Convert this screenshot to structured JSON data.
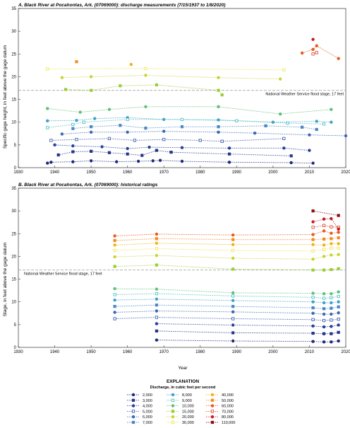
{
  "chart_data": [
    {
      "type": "scatter",
      "title": "A. Black River at Pocahontas, Ark. (07069000): discharge measurements (7/15/1937 to 1/8/2020)",
      "xlabel": "",
      "ylabel": "Specific gage height, in feet above the gage datum",
      "xlim": [
        1930,
        2020
      ],
      "ylim": [
        0,
        35
      ],
      "x_ticks": [
        "1930",
        "1940",
        "1950",
        "1960",
        "1970",
        "1980",
        "1990",
        "2000",
        "2010",
        "2020"
      ],
      "y_ticks": [
        "0",
        "5",
        "10",
        "15",
        "20",
        "25",
        "30",
        "35"
      ],
      "reference_line": {
        "y": 17,
        "label": "National Weather Service flood stage, 17 feet"
      },
      "series": [
        {
          "discharge": "2,000",
          "color": "#1f2a7a",
          "points": [
            [
              1938,
              1.0
            ],
            [
              1939,
              1.2
            ],
            [
              1945,
              1.3
            ],
            [
              1950,
              1.5
            ],
            [
              1957,
              1.3
            ],
            [
              1963,
              1.4
            ],
            [
              1967,
              1.5
            ],
            [
              1969,
              1.6
            ],
            [
              1975,
              1.4
            ],
            [
              1988,
              1.2
            ],
            [
              2005,
              1.1
            ],
            [
              2011,
              1.0
            ]
          ]
        },
        {
          "discharge": "3,000",
          "color": "#24358a",
          "points": [
            [
              1941,
              2.8
            ],
            [
              1945,
              3.5
            ],
            [
              1950,
              3.6
            ],
            [
              1955,
              3.3
            ],
            [
              1960,
              3.0
            ],
            [
              1964,
              2.7
            ],
            [
              1968,
              3.8
            ],
            [
              1972,
              3.4
            ],
            [
              1988,
              3.0
            ],
            [
              2005,
              2.6
            ]
          ]
        },
        {
          "discharge": "4,000",
          "color": "#27409a",
          "points": [
            [
              1940,
              5.0
            ],
            [
              1945,
              4.8
            ],
            [
              1953,
              4.6
            ],
            [
              1960,
              4.2
            ],
            [
              1966,
              4.5
            ],
            [
              1975,
              4.4
            ],
            [
              1988,
              4.3
            ],
            [
              2003,
              4.3
            ],
            [
              2010,
              3.8
            ]
          ]
        },
        {
          "discharge": "5,000",
          "color": "#2f52a8",
          "points": [
            [
              1939,
              6.0
            ],
            [
              1946,
              6.2
            ],
            [
              1955,
              6.4
            ],
            [
              1962,
              6.0
            ],
            [
              1970,
              6.2
            ],
            [
              1980,
              6.0
            ],
            [
              1986,
              5.8
            ],
            [
              2003,
              6.4
            ]
          ]
        },
        {
          "discharge": "6,000",
          "color": "#3a67b6",
          "points": [
            [
              1942,
              7.4
            ],
            [
              1950,
              7.8
            ],
            [
              1960,
              7.8
            ],
            [
              1970,
              8.0
            ],
            [
              1985,
              7.8
            ],
            [
              1995,
              7.6
            ],
            [
              2010,
              7.2
            ],
            [
              2020,
              7.0
            ]
          ]
        },
        {
          "discharge": "7,000",
          "color": "#4a86c4",
          "points": [
            [
              1945,
              8.6
            ],
            [
              1950,
              9.0
            ],
            [
              1958,
              9.3
            ],
            [
              1965,
              8.7
            ],
            [
              1975,
              9.0
            ],
            [
              1985,
              9.0
            ],
            [
              1998,
              9.2
            ],
            [
              2008,
              8.9
            ],
            [
              2012,
              8.4
            ]
          ]
        },
        {
          "discharge": "8,000",
          "color": "#3fa0cc",
          "points": [
            [
              1938,
              10.3
            ],
            [
              1946,
              10.4
            ],
            [
              1951,
              10.8
            ],
            [
              1960,
              11.0
            ],
            [
              1970,
              10.6
            ],
            [
              1985,
              10.5
            ],
            [
              2000,
              10.0
            ],
            [
              2012,
              10.2
            ],
            [
              2016,
              10.0
            ]
          ]
        },
        {
          "discharge": "9,000",
          "color": "#45bcbe",
          "points": [
            [
              1938,
              8.8
            ],
            [
              1945,
              9.5
            ],
            [
              1948,
              10.0
            ],
            [
              1960,
              10.6
            ],
            [
              1975,
              10.6
            ],
            [
              1990,
              10.3
            ],
            [
              2004,
              9.8
            ],
            [
              2014,
              9.6
            ]
          ]
        },
        {
          "discharge": "10,000",
          "color": "#5fc07a",
          "points": [
            [
              1938,
              13.0
            ],
            [
              1947,
              12.2
            ],
            [
              1955,
              12.8
            ],
            [
              1965,
              13.4
            ],
            [
              1985,
              13.4
            ],
            [
              2002,
              11.8
            ],
            [
              2016,
              12.8
            ]
          ]
        },
        {
          "discharge": "15,000",
          "color": "#9acd32",
          "points": [
            [
              1943,
              17.2
            ],
            [
              1950,
              17.0
            ],
            [
              1958,
              18.0
            ],
            [
              1968,
              18.2
            ],
            [
              1985,
              17.0
            ],
            [
              1986,
              16.0
            ]
          ]
        },
        {
          "discharge": "20,000",
          "color": "#c7d431",
          "points": [
            [
              1942,
              19.8
            ],
            [
              1950,
              20.0
            ],
            [
              1965,
              20.3
            ],
            [
              1985,
              19.8
            ],
            [
              2002,
              19.5
            ]
          ]
        },
        {
          "discharge": "30,000",
          "color": "#eee444",
          "points": [
            [
              1938,
              21.7
            ],
            [
              1965,
              21.8
            ],
            [
              2003,
              21.5
            ]
          ]
        },
        {
          "discharge": "40,000",
          "color": "#f2b21d",
          "points": [
            [
              1961,
              22.7
            ]
          ]
        },
        {
          "discharge": "50,000",
          "color": "#f28c1e",
          "points": [
            [
              1946,
              23.3
            ]
          ]
        },
        {
          "discharge": "60,000",
          "color": "#e8591e",
          "points": [
            [
              2008,
              25.2
            ],
            [
              2011,
              26.0
            ],
            [
              2012,
              26.8
            ],
            [
              2018,
              24.0
            ]
          ]
        },
        {
          "discharge": "70,000",
          "color": "#dc3b26",
          "points": [
            [
              2011,
              25.0
            ],
            [
              2012,
              25.3
            ]
          ]
        },
        {
          "discharge": "80,000",
          "color": "#c9191f",
          "points": [
            [
              2011,
              28.2
            ]
          ]
        }
      ]
    },
    {
      "type": "line",
      "title": "B. Black River at Pocahontas, Ark. (07069000): historical ratings",
      "xlabel": "Year",
      "ylabel": "Stage, in feet above the gage datum",
      "xlim": [
        1930,
        2020
      ],
      "ylim": [
        0,
        35
      ],
      "x_ticks": [
        "1930",
        "1940",
        "1950",
        "1960",
        "1970",
        "1980",
        "1990",
        "2000",
        "2010",
        "2020"
      ],
      "y_ticks": [
        "0",
        "5",
        "10",
        "15",
        "20",
        "25",
        "30",
        "35"
      ],
      "reference_line": {
        "y": 17,
        "label": "National Weather Service flood stage, 17 feet"
      },
      "rating_years": [
        1956.5,
        1968,
        1989,
        2011,
        2014,
        2016,
        2018
      ],
      "series": [
        {
          "discharge": "2,000",
          "color": "#1f2a7a",
          "values": [
            null,
            1.6,
            1.4,
            1.3,
            1.2,
            1.2,
            1.4
          ]
        },
        {
          "discharge": "3,000",
          "color": "#24358a",
          "values": [
            null,
            3.6,
            3.2,
            3.1,
            3.0,
            3.0,
            3.3
          ]
        },
        {
          "discharge": "4,000",
          "color": "#27409a",
          "values": [
            null,
            5.2,
            4.9,
            4.7,
            4.5,
            4.6,
            4.9
          ]
        },
        {
          "discharge": "5,000",
          "color": "#2f52a8",
          "values": [
            6.3,
            6.6,
            6.3,
            6.1,
            5.9,
            6.0,
            6.2
          ]
        },
        {
          "discharge": "6,000",
          "color": "#3a67b6",
          "values": [
            7.7,
            8.0,
            7.8,
            7.5,
            7.3,
            7.3,
            7.6
          ]
        },
        {
          "discharge": "7,000",
          "color": "#4a86c4",
          "values": [
            9.0,
            9.3,
            9.0,
            8.7,
            8.5,
            8.6,
            8.9
          ]
        },
        {
          "discharge": "8,000",
          "color": "#3fa0cc",
          "values": [
            10.4,
            10.6,
            10.3,
            10.0,
            9.8,
            9.8,
            10.0
          ]
        },
        {
          "discharge": "9,000",
          "color": "#45bcbe",
          "values": [
            11.6,
            11.8,
            11.3,
            11.0,
            10.8,
            10.9,
            11.2
          ]
        },
        {
          "discharge": "10,000",
          "color": "#5fc07a",
          "values": [
            12.9,
            12.8,
            12.0,
            11.9,
            11.8,
            11.8,
            12.2
          ]
        },
        {
          "discharge": "15,000",
          "color": "#9acd32",
          "values": [
            17.8,
            18.1,
            17.2,
            17.0,
            17.0,
            17.1,
            17.3
          ]
        },
        {
          "discharge": "20,000",
          "color": "#c7d431",
          "values": [
            19.9,
            20.2,
            19.6,
            19.4,
            20.0,
            20.3,
            20.4
          ]
        },
        {
          "discharge": "30,000",
          "color": "#eee444",
          "values": [
            21.3,
            21.7,
            21.3,
            21.2,
            21.5,
            21.8,
            21.8
          ]
        },
        {
          "discharge": "40,000",
          "color": "#f2b21d",
          "values": [
            22.5,
            22.9,
            22.6,
            22.6,
            22.5,
            22.8,
            22.8
          ]
        },
        {
          "discharge": "50,000",
          "color": "#f28c1e",
          "values": [
            23.5,
            23.9,
            23.7,
            23.7,
            23.8,
            23.9,
            24.1
          ]
        },
        {
          "discharge": "60,000",
          "color": "#e8591e",
          "values": [
            24.5,
            24.9,
            24.7,
            24.8,
            25.6,
            25.1,
            25.3
          ]
        },
        {
          "discharge": "70,000",
          "color": "#dc3b26",
          "values": [
            null,
            null,
            null,
            26.4,
            26.8,
            26.5,
            26.4
          ]
        },
        {
          "discharge": "80,000",
          "color": "#c9191f",
          "values": [
            null,
            null,
            null,
            27.6,
            28.2,
            28.3,
            26.0
          ]
        },
        {
          "discharge": "110,000",
          "color": "#8b0d10",
          "values": [
            null,
            null,
            null,
            30.0,
            null,
            null,
            29.0
          ]
        }
      ]
    }
  ],
  "legend": {
    "title": "EXPLANATION",
    "subtitle": "Discharge, in cubic feet per second",
    "items": [
      {
        "label": "2,000",
        "color": "#1f2a7a"
      },
      {
        "label": "3,000",
        "color": "#24358a"
      },
      {
        "label": "4,000",
        "color": "#27409a"
      },
      {
        "label": "5,000",
        "color": "#2f52a8"
      },
      {
        "label": "6,000",
        "color": "#3a67b6"
      },
      {
        "label": "7,000",
        "color": "#4a86c4"
      },
      {
        "label": "8,000",
        "color": "#3fa0cc"
      },
      {
        "label": "9,000",
        "color": "#45bcbe"
      },
      {
        "label": "10,000",
        "color": "#5fc07a"
      },
      {
        "label": "15,000",
        "color": "#9acd32"
      },
      {
        "label": "20,000",
        "color": "#c7d431"
      },
      {
        "label": "30,000",
        "color": "#eee444"
      },
      {
        "label": "40,000",
        "color": "#f2b21d"
      },
      {
        "label": "50,000",
        "color": "#f28c1e"
      },
      {
        "label": "60,000",
        "color": "#e8591e"
      },
      {
        "label": "70,000",
        "color": "#dc3b26"
      },
      {
        "label": "80,000",
        "color": "#c9191f"
      },
      {
        "label": "110,000",
        "color": "#8b0d10"
      }
    ]
  }
}
